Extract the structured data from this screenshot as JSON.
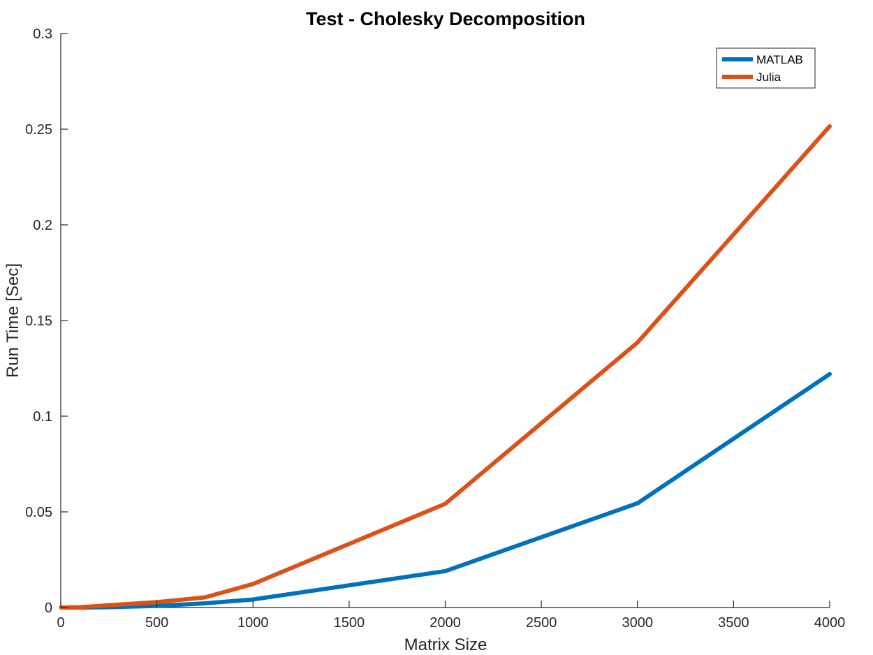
{
  "chart_data": {
    "type": "line",
    "title": "Test - Cholesky Decomposition",
    "xlabel": "Matrix Size",
    "ylabel": "Run Time  [Sec]",
    "xlim": [
      0,
      4000
    ],
    "ylim": [
      0,
      0.3
    ],
    "xticks": [
      0,
      500,
      1000,
      1500,
      2000,
      2500,
      3000,
      3500,
      4000
    ],
    "xtick_labels": [
      "0",
      "500",
      "1000",
      "1500",
      "2000",
      "2500",
      "3000",
      "3500",
      "4000"
    ],
    "yticks": [
      0,
      0.05,
      0.1,
      0.15,
      0.2,
      0.25,
      0.3
    ],
    "ytick_labels": [
      "0",
      "0.05",
      "0.1",
      "0.15",
      "0.2",
      "0.25",
      "0.3"
    ],
    "grid": false,
    "legend_position": "top-right",
    "series": [
      {
        "name": "MATLAB",
        "color": "#0072BD",
        "x": [
          2,
          5,
          10,
          20,
          50,
          75,
          100,
          200,
          250,
          500,
          750,
          1000,
          2000,
          3000,
          4000
        ],
        "y": [
          0.0,
          0.0,
          0.0,
          0.0,
          0.0,
          0.0,
          0.0,
          0.0001,
          0.0002,
          0.0008,
          0.0022,
          0.0042,
          0.019,
          0.0545,
          0.122
        ]
      },
      {
        "name": "Julia",
        "color": "#D95319",
        "x": [
          2,
          5,
          10,
          20,
          50,
          75,
          100,
          200,
          250,
          500,
          750,
          1000,
          2000,
          3000,
          4000
        ],
        "y": [
          0.0,
          0.0,
          0.0,
          0.0,
          0.0001,
          0.0001,
          0.0002,
          0.0008,
          0.0012,
          0.0028,
          0.0053,
          0.0123,
          0.0542,
          0.1385,
          0.2515
        ]
      }
    ]
  }
}
